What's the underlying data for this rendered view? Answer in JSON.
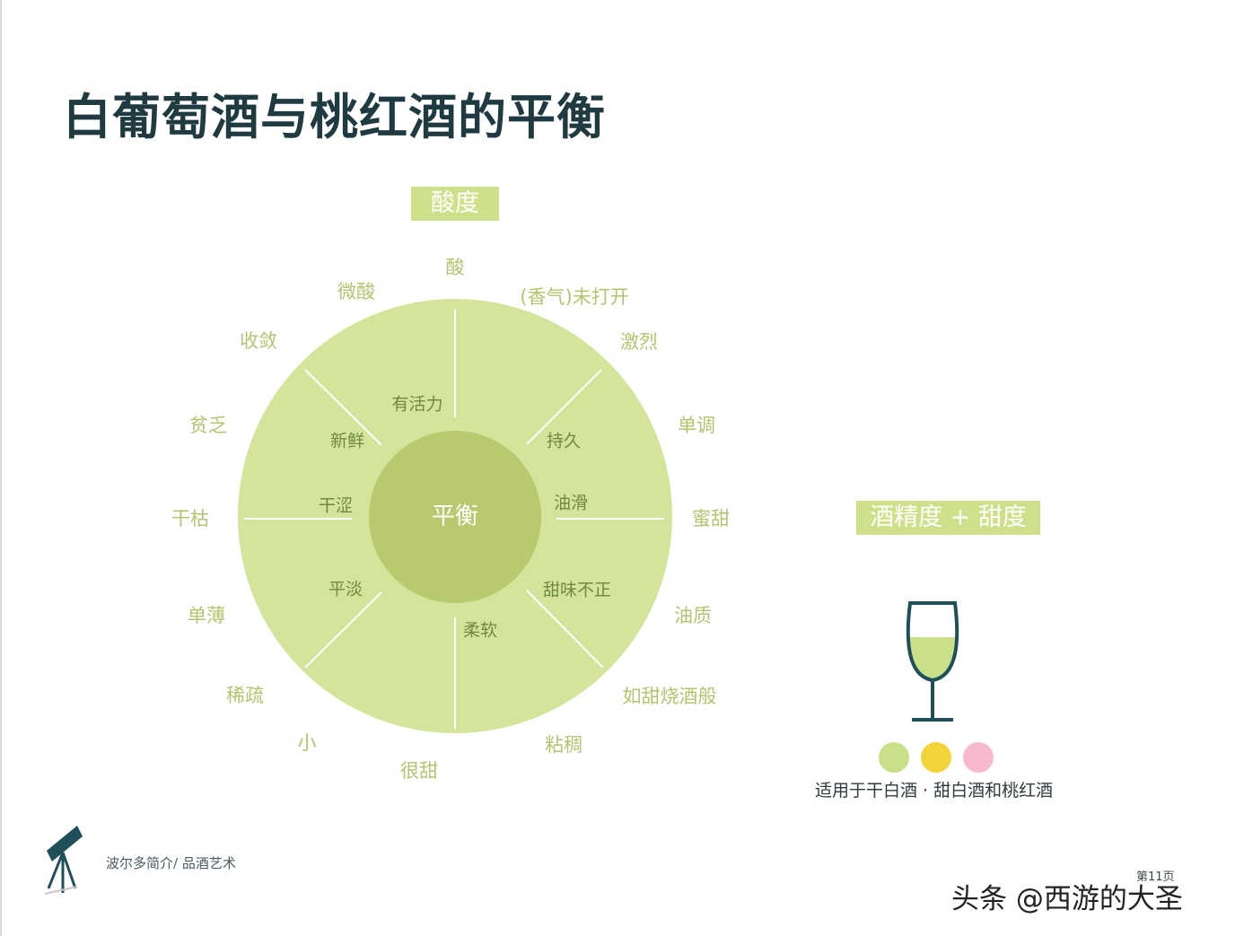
{
  "title": "白葡萄酒与桃红酒的平衡",
  "acidity_box": "酸度",
  "alcohol_sugar_box": "酒精度 + 甜度",
  "center": "平衡",
  "outer_labels": {
    "suan": "酸",
    "xiangqi": "(香气)未打开",
    "jilie": "激烈",
    "dandiao": "单调",
    "mitian": "蜜甜",
    "youzhi": "油质",
    "rutian": "如甜烧酒般",
    "zhanchou": "粘稠",
    "hentian": "很甜",
    "xiao": "小",
    "xishu": "稀疏",
    "danbao": "单薄",
    "ganku": "干枯",
    "pinfa": "贫乏",
    "shoulian": "收敛",
    "weisuan": "微酸"
  },
  "inner_labels": {
    "youhuoli": "有活力",
    "chijiu": "持久",
    "youhua": "油滑",
    "tianwei": "甜味不正",
    "rouruan": "柔软",
    "pingdan": "平淡",
    "gansi": "干涩",
    "xinxian": "新鲜"
  },
  "legend": {
    "suitable_text": "适用于干白酒 · 甜白酒和桃红酒",
    "dot_colors": [
      "#c9e089",
      "#f2d43a",
      "#f8b9cc"
    ]
  },
  "footer": {
    "text": "波尔多简介/ 品酒艺术",
    "page": "第11页"
  },
  "watermark": "头条 @西游的大圣",
  "colors": {
    "wheel": "#d4e49a",
    "center": "#b8c96e",
    "lines": "#ffffff",
    "title": "#1f3a40",
    "glass": "#1f4f5a"
  }
}
